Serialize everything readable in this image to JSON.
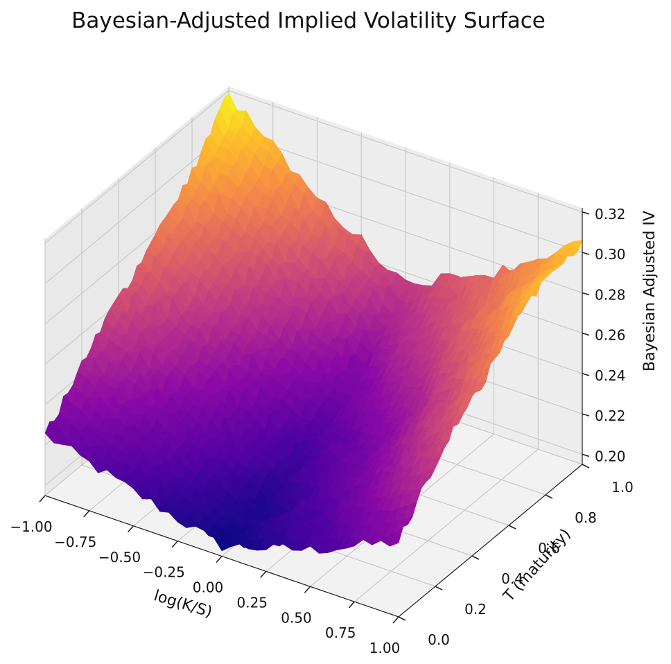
{
  "chart_data": {
    "type": "surface3d",
    "title": "Bayesian-Adjusted Implied Volatility Surface",
    "xlabel": "log(K/S)",
    "ylabel": "T (maturity)",
    "zlabel": "Bayesian Adjusted IV",
    "xlim": [
      -1.0,
      1.0
    ],
    "ylim": [
      0.0,
      1.0
    ],
    "zlim": [
      0.195,
      0.322
    ],
    "xticks": [
      "−1.00",
      "−0.75",
      "−0.50",
      "−0.25",
      "0.00",
      "0.25",
      "0.50",
      "0.75",
      "1.00"
    ],
    "yticks": [
      "0.0",
      "0.2",
      "0.4",
      "0.6",
      "0.8",
      "1.0"
    ],
    "zticks": [
      "0.20",
      "0.22",
      "0.24",
      "0.26",
      "0.28",
      "0.30",
      "0.32"
    ],
    "colormap": "plasma",
    "grid": true,
    "surface_samples": {
      "description_of_axes": "rows = T (maturity) 0.0..1.0, cols = log(K/S) -1.00..1.00",
      "T": [
        0.0,
        0.25,
        0.5,
        0.75,
        1.0
      ],
      "logKS": [
        -1.0,
        -0.5,
        0.0,
        0.5,
        1.0
      ],
      "iv": [
        [
          0.225,
          0.212,
          0.2,
          0.213,
          0.232
        ],
        [
          0.25,
          0.226,
          0.205,
          0.226,
          0.262
        ],
        [
          0.27,
          0.24,
          0.215,
          0.238,
          0.28
        ],
        [
          0.29,
          0.258,
          0.232,
          0.262,
          0.3
        ],
        [
          0.318,
          0.282,
          0.255,
          0.275,
          0.305
        ]
      ]
    }
  }
}
